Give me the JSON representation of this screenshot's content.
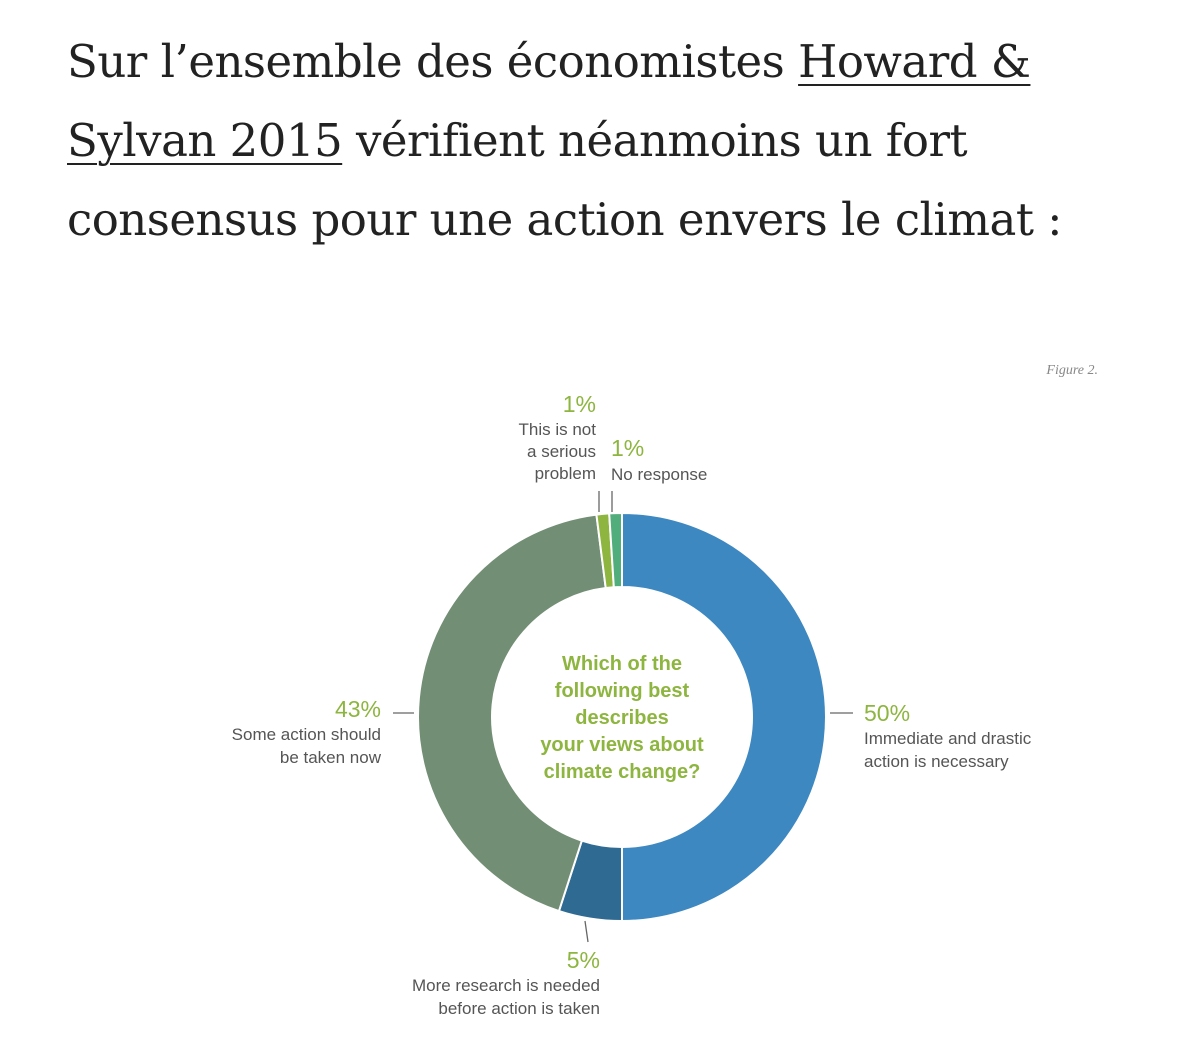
{
  "intro": {
    "text_before": "Sur l’ensemble des économistes ",
    "link": "Howard & Sylvan 2015",
    "text_after": " vérifient néanmoins un fort consensus pour une action envers le climat :"
  },
  "figure_label": "Figure 2.",
  "chart_data": {
    "type": "pie",
    "title": "Which of the following best describes your views about climate change?",
    "title_lines": [
      "Which of the",
      "following best",
      "describes",
      "your views about",
      "climate change?"
    ],
    "donut": true,
    "colors": {
      "pct_text": "#8db53f",
      "label_text": "#555555"
    },
    "slices": [
      {
        "pct_label": "50%",
        "value": 50,
        "label_lines": [
          "Immediate and drastic",
          "action is necessary"
        ],
        "color": "#3d88c0"
      },
      {
        "pct_label": "5%",
        "value": 5,
        "label_lines": [
          "More research is needed",
          "before action is taken"
        ],
        "color": "#2e6a92"
      },
      {
        "pct_label": "43%",
        "value": 43,
        "label_lines": [
          "Some action should",
          "be taken now"
        ],
        "color": "#728e74"
      },
      {
        "pct_label": "1%",
        "value": 1,
        "label_lines": [
          "This is not",
          "a serious",
          "problem"
        ],
        "color": "#8db53f"
      },
      {
        "pct_label": "1%",
        "value": 1,
        "label_lines": [
          "No response"
        ],
        "color": "#52ad7c"
      }
    ]
  }
}
